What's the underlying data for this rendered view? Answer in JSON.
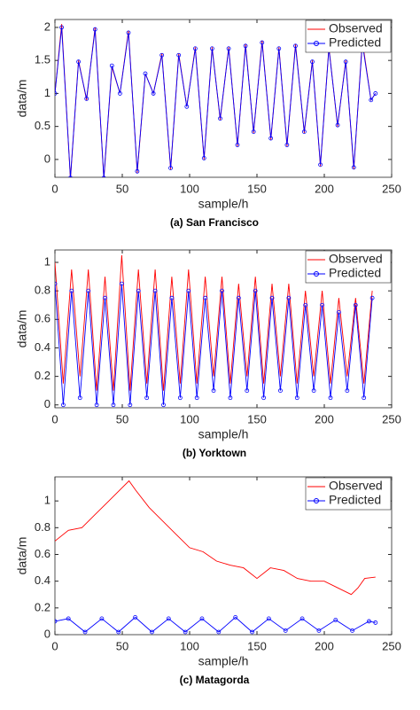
{
  "chart_data": [
    {
      "type": "line",
      "caption": "(a) San Francisco",
      "xlabel": "sample/h",
      "ylabel": "data/m",
      "xlim": [
        0,
        250
      ],
      "ylim": [
        -0.27,
        2.12
      ],
      "xticks": [
        0,
        50,
        100,
        150,
        200,
        250
      ],
      "yticks": [
        0,
        0.5,
        1,
        1.5,
        2
      ],
      "legend": "upper right",
      "x": [
        0,
        5,
        11.5,
        17.5,
        23.5,
        29.8,
        36.3,
        42.3,
        48.3,
        54.6,
        61.1,
        67.1,
        73.1,
        79.4,
        85.9,
        91.9,
        97.9,
        104.2,
        110.7,
        116.7,
        122.7,
        129,
        135.5,
        141.5,
        147.5,
        153.8,
        160.3,
        166.3,
        172.3,
        178.6,
        185.1,
        191.1,
        197.1,
        203.4,
        209.9,
        215.9,
        221.9,
        228.2,
        234.7,
        238
      ],
      "series": [
        {
          "name": "Observed",
          "color": "#ff0000",
          "marker": false,
          "values": [
            1.0,
            2.05,
            -0.3,
            1.5,
            0.9,
            2.0,
            -0.3,
            1.4,
            1.0,
            1.95,
            -0.2,
            1.3,
            1.0,
            1.6,
            -0.15,
            1.6,
            0.8,
            1.7,
            0.0,
            1.7,
            0.6,
            1.7,
            0.2,
            1.75,
            0.4,
            1.8,
            0.3,
            1.7,
            0.2,
            1.75,
            0.4,
            1.5,
            -0.1,
            1.7,
            0.5,
            1.5,
            -0.15,
            1.8,
            0.9,
            1.0
          ]
        },
        {
          "name": "Predicted",
          "color": "#0000ff",
          "marker": true,
          "values": [
            1.0,
            2.0,
            -0.28,
            1.48,
            0.92,
            1.97,
            -0.28,
            1.42,
            1.0,
            1.92,
            -0.18,
            1.3,
            1.0,
            1.58,
            -0.13,
            1.58,
            0.8,
            1.68,
            0.02,
            1.68,
            0.62,
            1.68,
            0.22,
            1.72,
            0.42,
            1.77,
            0.32,
            1.68,
            0.22,
            1.72,
            0.42,
            1.48,
            -0.08,
            1.68,
            0.52,
            1.48,
            -0.12,
            1.76,
            0.9,
            1.0
          ]
        }
      ]
    },
    {
      "type": "line",
      "caption": "(b) Yorktown",
      "xlabel": "sample/h",
      "ylabel": "data/m",
      "xlim": [
        0,
        250
      ],
      "ylim": [
        -0.02,
        1.087
      ],
      "xticks": [
        0,
        50,
        100,
        150,
        200,
        250
      ],
      "yticks": [
        0,
        0.2,
        0.4,
        0.6,
        0.8,
        1
      ],
      "legend": "upper right",
      "x": [
        0,
        6.2,
        12.4,
        18.6,
        24.8,
        31,
        37.2,
        43.4,
        49.6,
        55.8,
        62,
        68.2,
        74.4,
        80.6,
        86.8,
        93,
        99.2,
        105.4,
        111.6,
        117.8,
        124,
        130.2,
        136.4,
        142.6,
        148.8,
        155,
        161.2,
        167.4,
        173.6,
        179.8,
        186,
        192.2,
        198.4,
        204.6,
        210.8,
        217,
        223.2,
        229.4,
        235.6
      ],
      "series": [
        {
          "name": "Observed",
          "color": "#ff0000",
          "marker": false,
          "values": [
            1.0,
            0.15,
            0.95,
            0.2,
            0.95,
            0.1,
            0.9,
            0.1,
            1.05,
            0.1,
            0.95,
            0.15,
            0.95,
            0.1,
            0.9,
            0.15,
            0.95,
            0.15,
            0.9,
            0.2,
            0.9,
            0.15,
            0.85,
            0.2,
            0.9,
            0.15,
            0.85,
            0.2,
            0.85,
            0.15,
            0.8,
            0.2,
            0.8,
            0.15,
            0.75,
            0.2,
            0.75,
            0.15,
            0.8
          ]
        },
        {
          "name": "Predicted",
          "color": "#0000ff",
          "marker": true,
          "values": [
            0.85,
            0.0,
            0.8,
            0.05,
            0.8,
            0.0,
            0.75,
            0.0,
            0.85,
            0.0,
            0.8,
            0.05,
            0.8,
            0.0,
            0.75,
            0.05,
            0.8,
            0.05,
            0.75,
            0.1,
            0.8,
            0.05,
            0.75,
            0.1,
            0.8,
            0.05,
            0.75,
            0.1,
            0.75,
            0.05,
            0.7,
            0.1,
            0.7,
            0.05,
            0.65,
            0.1,
            0.7,
            0.05,
            0.75
          ]
        }
      ]
    },
    {
      "type": "line",
      "caption": "(c) Matagorda",
      "xlabel": "sample/h",
      "ylabel": "data/m",
      "xlim": [
        0,
        250
      ],
      "ylim": [
        0,
        1.18
      ],
      "xticks": [
        0,
        50,
        100,
        150,
        200,
        250
      ],
      "yticks": [
        0,
        0.2,
        0.4,
        0.6,
        0.8,
        1
      ],
      "legend": "upper right",
      "series": [
        {
          "name": "Observed",
          "color": "#ff0000",
          "marker": false,
          "x": [
            0,
            10,
            20,
            30,
            40,
            50,
            55,
            60,
            70,
            80,
            90,
            100,
            110,
            120,
            130,
            140,
            150,
            160,
            170,
            180,
            190,
            200,
            210,
            220,
            225,
            230,
            238
          ],
          "values": [
            0.7,
            0.78,
            0.8,
            0.9,
            1.0,
            1.1,
            1.15,
            1.08,
            0.95,
            0.85,
            0.75,
            0.65,
            0.62,
            0.55,
            0.52,
            0.5,
            0.42,
            0.5,
            0.48,
            0.42,
            0.4,
            0.4,
            0.35,
            0.3,
            0.35,
            0.42,
            0.43
          ]
        },
        {
          "name": "Predicted",
          "color": "#0000ff",
          "marker": true,
          "x": [
            0,
            10,
            22.4,
            34.8,
            47.2,
            59.6,
            72,
            84.4,
            96.8,
            109.2,
            121.6,
            134,
            146.4,
            158.8,
            171.2,
            183.6,
            196,
            208.4,
            220.8,
            233.2,
            238
          ],
          "values": [
            0.1,
            0.12,
            0.02,
            0.12,
            0.02,
            0.13,
            0.02,
            0.12,
            0.02,
            0.12,
            0.02,
            0.13,
            0.02,
            0.12,
            0.03,
            0.12,
            0.03,
            0.11,
            0.03,
            0.1,
            0.09
          ]
        }
      ]
    }
  ]
}
